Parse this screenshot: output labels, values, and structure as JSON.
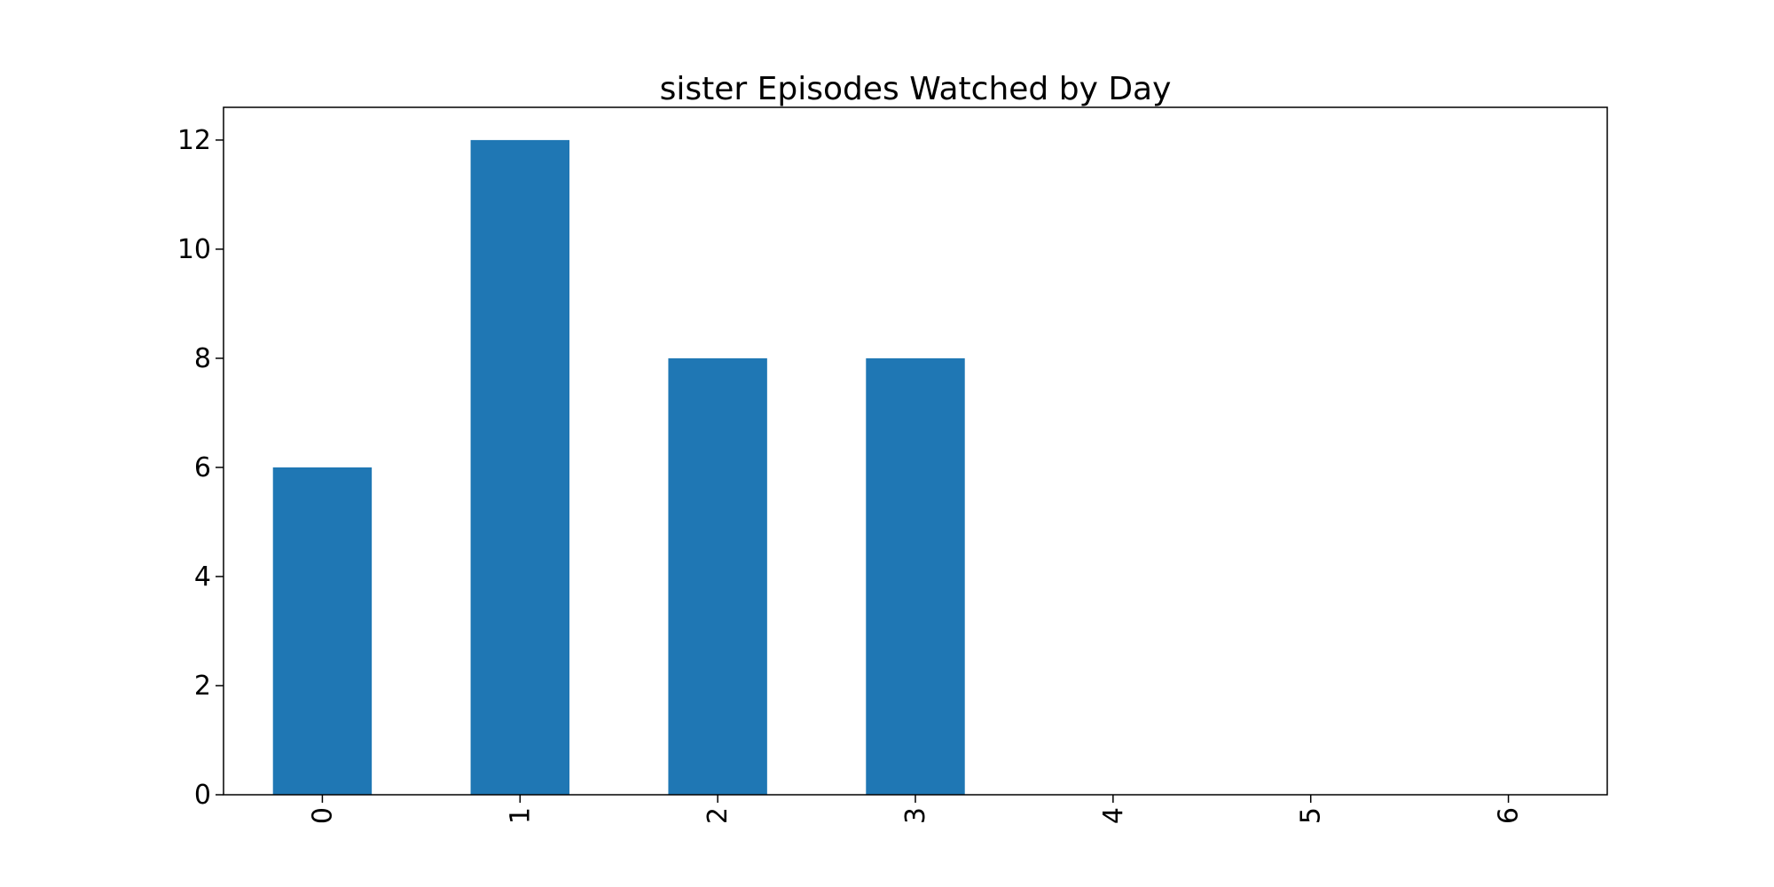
{
  "chart_data": {
    "type": "bar",
    "title": "sister Episodes Watched by Day",
    "xlabel": "",
    "ylabel": "",
    "categories": [
      "0",
      "1",
      "2",
      "3",
      "4",
      "5",
      "6"
    ],
    "values": [
      6,
      12,
      8,
      8,
      0,
      0,
      0
    ],
    "ylim": [
      0,
      12.6
    ],
    "yticks": [
      "0",
      "2",
      "4",
      "6",
      "8",
      "10",
      "12"
    ],
    "x_tick_rotation": "vertical",
    "grid": false,
    "legend": "none",
    "bar_color": "#1f77b4"
  }
}
